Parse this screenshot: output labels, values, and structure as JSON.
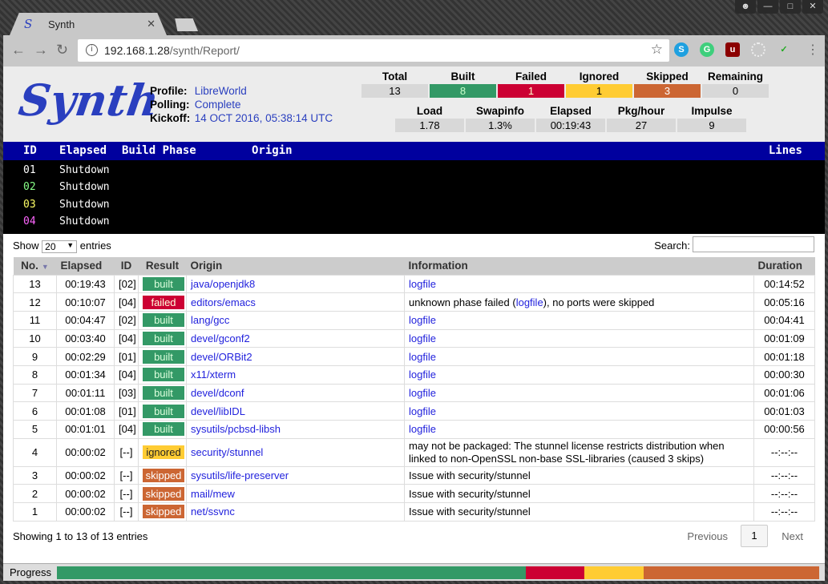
{
  "browser": {
    "tab_title": "Synth",
    "url_host": "192.168.1.28",
    "url_path": "/synth/Report/",
    "extensions": [
      "skype-icon",
      "grammarly-icon",
      "ublock-icon",
      "loading-icon",
      "check-icon"
    ]
  },
  "header": {
    "logo": "Synth",
    "profile_label": "Profile:",
    "profile": "LibreWorld",
    "polling_label": "Polling:",
    "polling": "Complete",
    "kickoff_label": "Kickoff:",
    "kickoff": "14 OCT 2016, 05:38:14 UTC"
  },
  "stats": [
    {
      "label": "Total",
      "value": "13",
      "color": "#d8d8d8"
    },
    {
      "label": "Built",
      "value": "8",
      "color": "#339966"
    },
    {
      "label": "Failed",
      "value": "1",
      "color": "#cc0033"
    },
    {
      "label": "Ignored",
      "value": "1",
      "color": "#ffcc33"
    },
    {
      "label": "Skipped",
      "value": "3",
      "color": "#cc6633"
    },
    {
      "label": "Remaining",
      "value": "0",
      "color": "#d8d8d8"
    }
  ],
  "stats2": [
    {
      "label": "Load",
      "value": "1.78"
    },
    {
      "label": "Swapinfo",
      "value": "1.3%"
    },
    {
      "label": "Elapsed",
      "value": "00:19:43"
    },
    {
      "label": "Pkg/hour",
      "value": "27"
    },
    {
      "label": "Impulse",
      "value": "9"
    }
  ],
  "builders": {
    "headers": {
      "id": "ID",
      "elapsed": "Elapsed",
      "phase": "Build Phase",
      "origin": "Origin",
      "lines": "Lines"
    },
    "rows": [
      {
        "id": "01",
        "elapsed": "Shutdown",
        "color": "#ffffff"
      },
      {
        "id": "02",
        "elapsed": "Shutdown",
        "color": "#88ff88"
      },
      {
        "id": "03",
        "elapsed": "Shutdown",
        "color": "#ffff66"
      },
      {
        "id": "04",
        "elapsed": "Shutdown",
        "color": "#ff66ff"
      }
    ]
  },
  "table": {
    "show": "Show",
    "entries_value": "20",
    "entries": "entries",
    "search_label": "Search:",
    "search_value": "",
    "columns": [
      "No.",
      "Elapsed",
      "ID",
      "Result",
      "Origin",
      "Information",
      "Duration"
    ],
    "rows": [
      {
        "no": "13",
        "elapsed": "00:19:43",
        "id": "[02]",
        "result": "built",
        "origin": "java/openjdk8",
        "info": "",
        "info_link": "logfile",
        "duration": "00:14:52"
      },
      {
        "no": "12",
        "elapsed": "00:10:07",
        "id": "[04]",
        "result": "failed",
        "origin": "editors/emacs",
        "info": "unknown phase failed (",
        "info_link": "logfile",
        "info_after": "), no ports were skipped",
        "duration": "00:05:16"
      },
      {
        "no": "11",
        "elapsed": "00:04:47",
        "id": "[02]",
        "result": "built",
        "origin": "lang/gcc",
        "info_link": "logfile",
        "duration": "00:04:41"
      },
      {
        "no": "10",
        "elapsed": "00:03:40",
        "id": "[04]",
        "result": "built",
        "origin": "devel/gconf2",
        "info_link": "logfile",
        "duration": "00:01:09"
      },
      {
        "no": "9",
        "elapsed": "00:02:29",
        "id": "[01]",
        "result": "built",
        "origin": "devel/ORBit2",
        "info_link": "logfile",
        "duration": "00:01:18"
      },
      {
        "no": "8",
        "elapsed": "00:01:34",
        "id": "[04]",
        "result": "built",
        "origin": "x11/xterm",
        "info_link": "logfile",
        "duration": "00:00:30"
      },
      {
        "no": "7",
        "elapsed": "00:01:11",
        "id": "[03]",
        "result": "built",
        "origin": "devel/dconf",
        "info_link": "logfile",
        "duration": "00:01:06"
      },
      {
        "no": "6",
        "elapsed": "00:01:08",
        "id": "[01]",
        "result": "built",
        "origin": "devel/libIDL",
        "info_link": "logfile",
        "duration": "00:01:03"
      },
      {
        "no": "5",
        "elapsed": "00:01:01",
        "id": "[04]",
        "result": "built",
        "origin": "sysutils/pcbsd-libsh",
        "info_link": "logfile",
        "duration": "00:00:56"
      },
      {
        "no": "4",
        "elapsed": "00:00:02",
        "id": "[--]",
        "result": "ignored",
        "origin": "security/stunnel",
        "info": "may not be packaged: The stunnel license restricts distribution when linked to non-OpenSSL non-base SSL-libraries (caused 3 skips)",
        "duration": "--:--:--"
      },
      {
        "no": "3",
        "elapsed": "00:00:02",
        "id": "[--]",
        "result": "skipped",
        "origin": "sysutils/life-preserver",
        "info": "Issue with security/stunnel",
        "duration": "--:--:--"
      },
      {
        "no": "2",
        "elapsed": "00:00:02",
        "id": "[--]",
        "result": "skipped",
        "origin": "mail/mew",
        "info": "Issue with security/stunnel",
        "duration": "--:--:--"
      },
      {
        "no": "1",
        "elapsed": "00:00:02",
        "id": "[--]",
        "result": "skipped",
        "origin": "net/ssvnc",
        "info": "Issue with security/stunnel",
        "duration": "--:--:--"
      }
    ],
    "summary": "Showing 1 to 13 of 13 entries",
    "previous": "Previous",
    "page": "1",
    "next": "Next"
  },
  "progress": {
    "label": "Progress",
    "segments": [
      {
        "name": "built",
        "count": 8,
        "color": "#339966"
      },
      {
        "name": "failed",
        "count": 1,
        "color": "#cc0033"
      },
      {
        "name": "ignored",
        "count": 1,
        "color": "#ffcc33"
      },
      {
        "name": "skipped",
        "count": 3,
        "color": "#cc6633"
      }
    ],
    "total": 13
  }
}
